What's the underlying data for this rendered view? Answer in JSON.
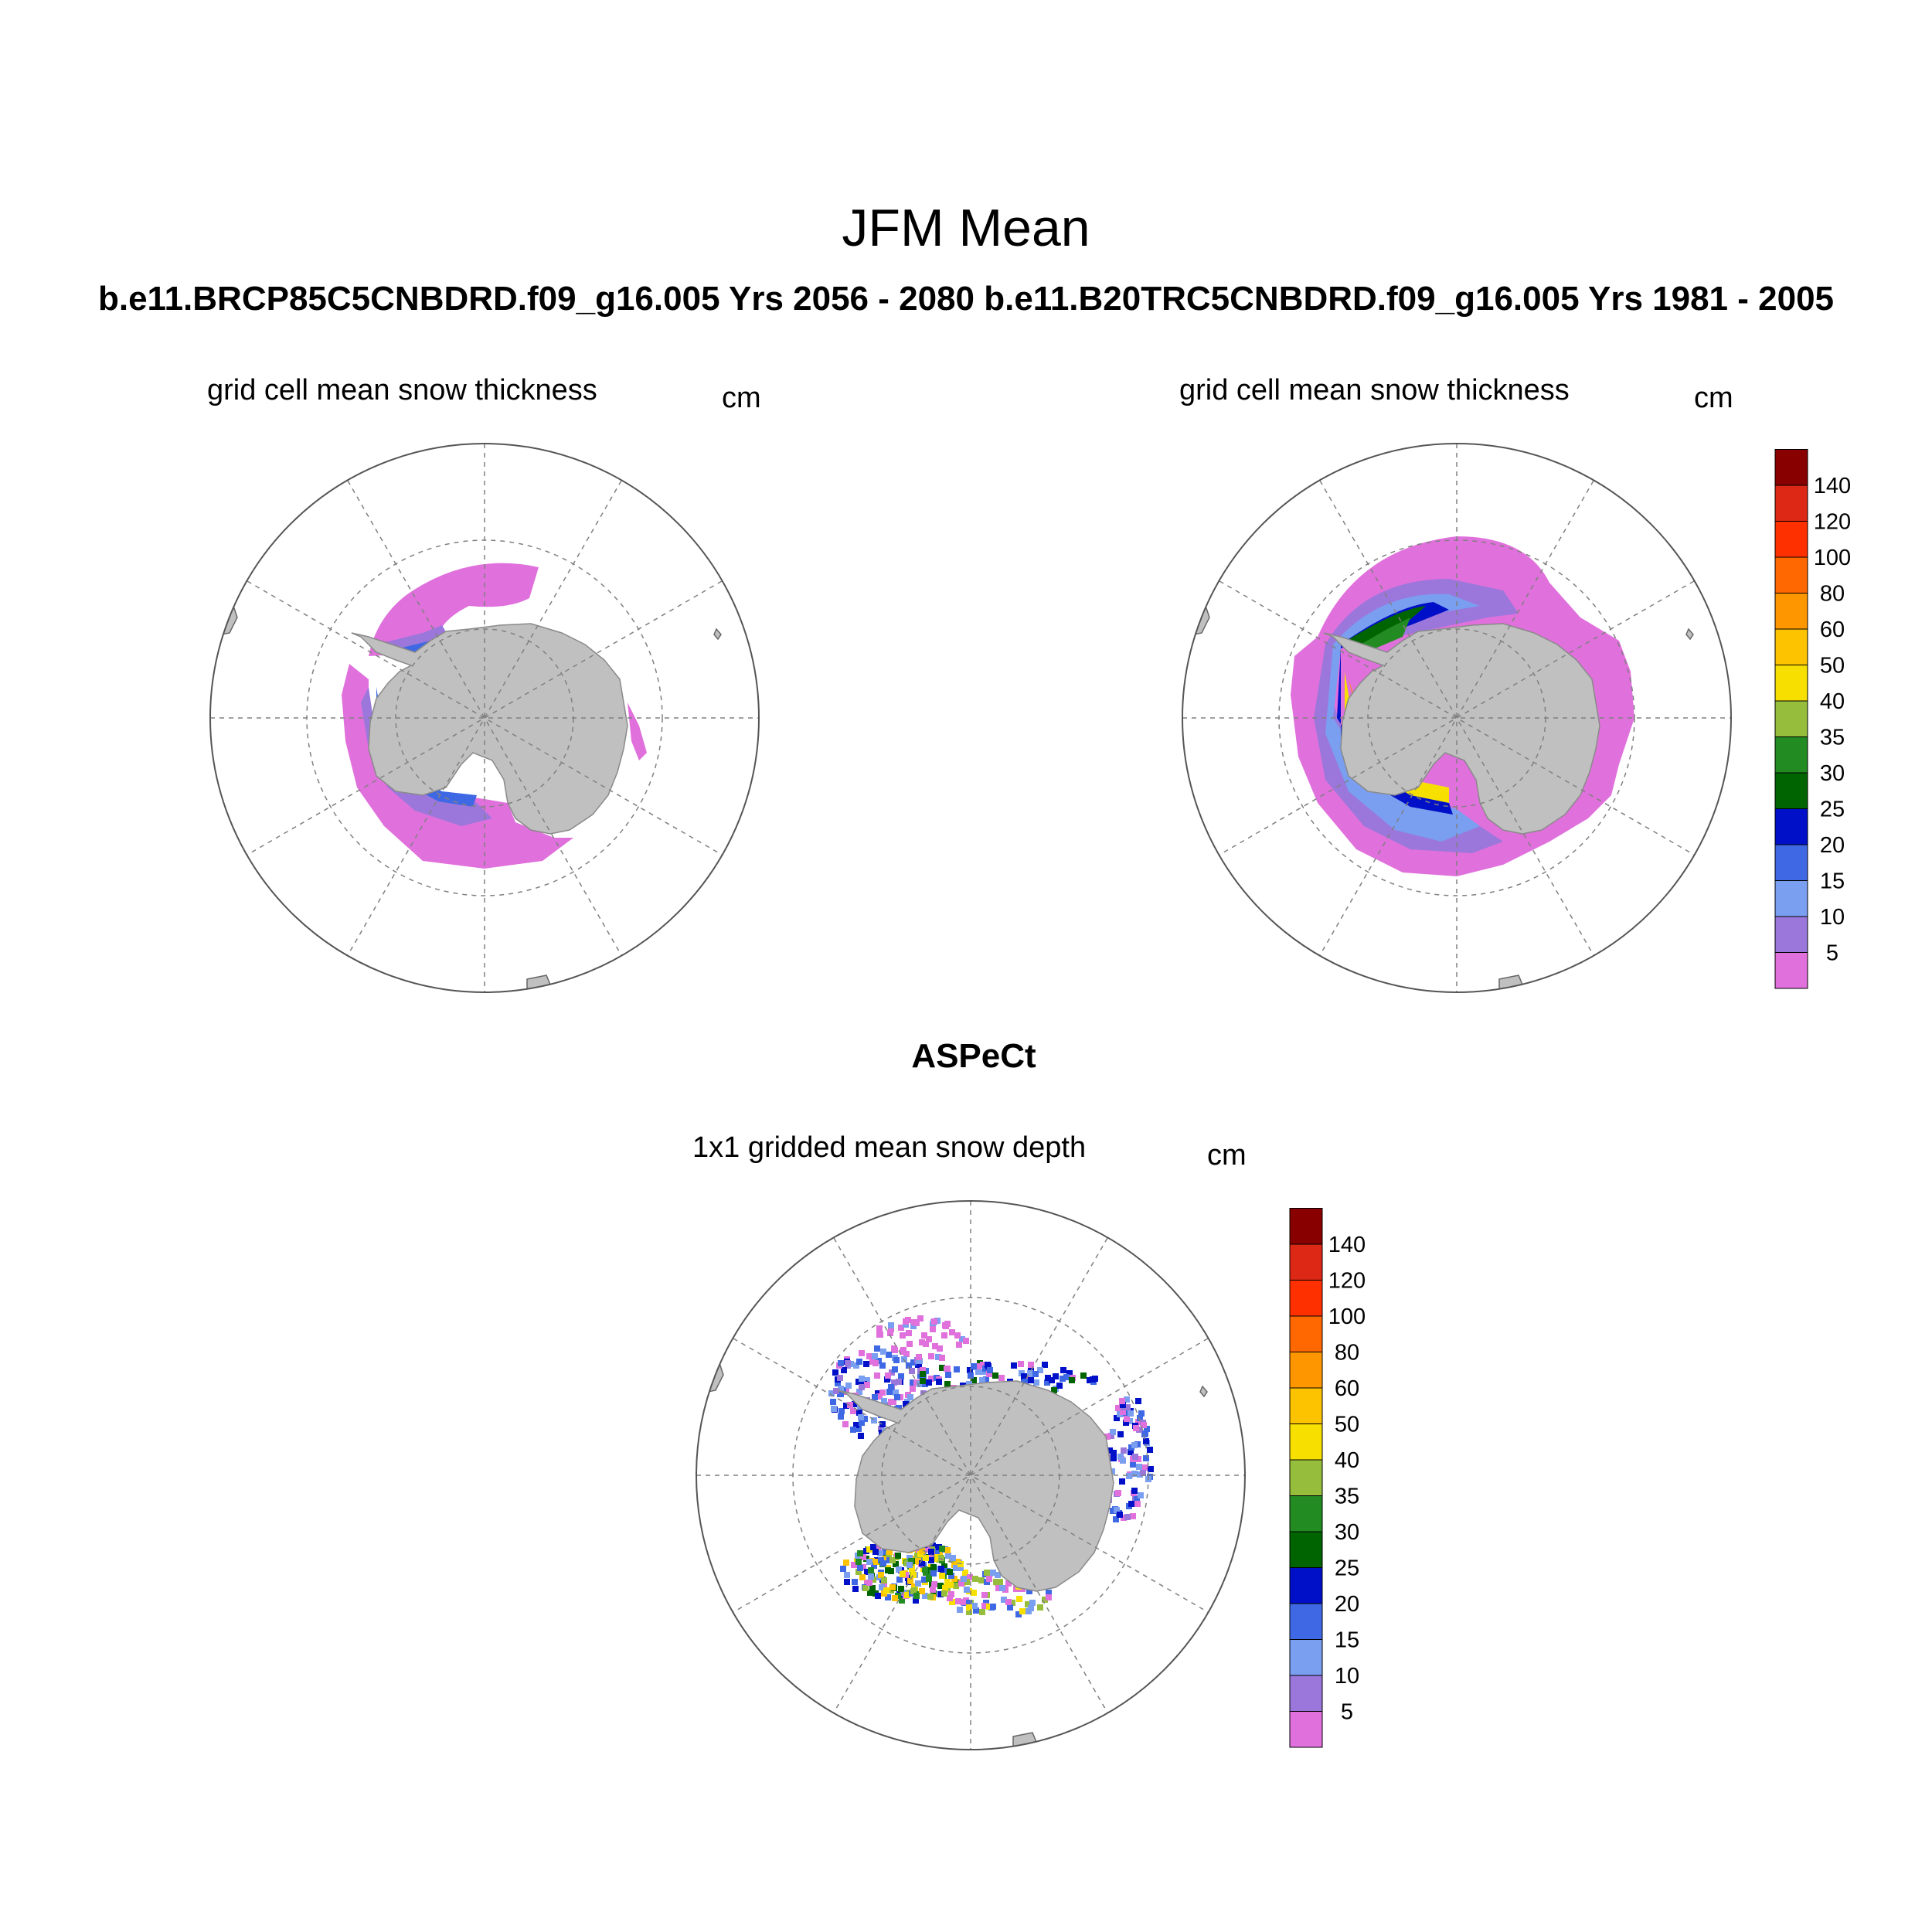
{
  "figure": {
    "title": "JFM Mean",
    "case_title": "b.e11.BRCP85C5CNBDRD.f09_g16.005  Yrs 2056 - 2080   b.e11.B20TRC5CNBDRD.f09_g16.005  Yrs 1981 - 2005",
    "obs_title": "ASPeCt"
  },
  "panels": [
    {
      "title": "grid cell mean snow thickness",
      "units": "cm"
    },
    {
      "title": "grid cell mean snow thickness",
      "units": "cm"
    },
    {
      "title": "1x1 gridded mean snow depth",
      "units": "cm"
    }
  ],
  "colorbar": {
    "labels": [
      "5",
      "10",
      "15",
      "20",
      "25",
      "30",
      "35",
      "40",
      "50",
      "60",
      "80",
      "100",
      "120",
      "140"
    ],
    "colors": [
      "#e070dc",
      "#9b77dc",
      "#7a9ef0",
      "#3f68e4",
      "#0010c8",
      "#006400",
      "#228b22",
      "#96be3c",
      "#f7e000",
      "#fec300",
      "#fe9600",
      "#ff6800",
      "#ff3000",
      "#dc2814",
      "#880000"
    ]
  },
  "map_style": {
    "land_color": "#c0c0c0",
    "grid_color": "#808080",
    "projection": "south polar stereographic"
  }
}
